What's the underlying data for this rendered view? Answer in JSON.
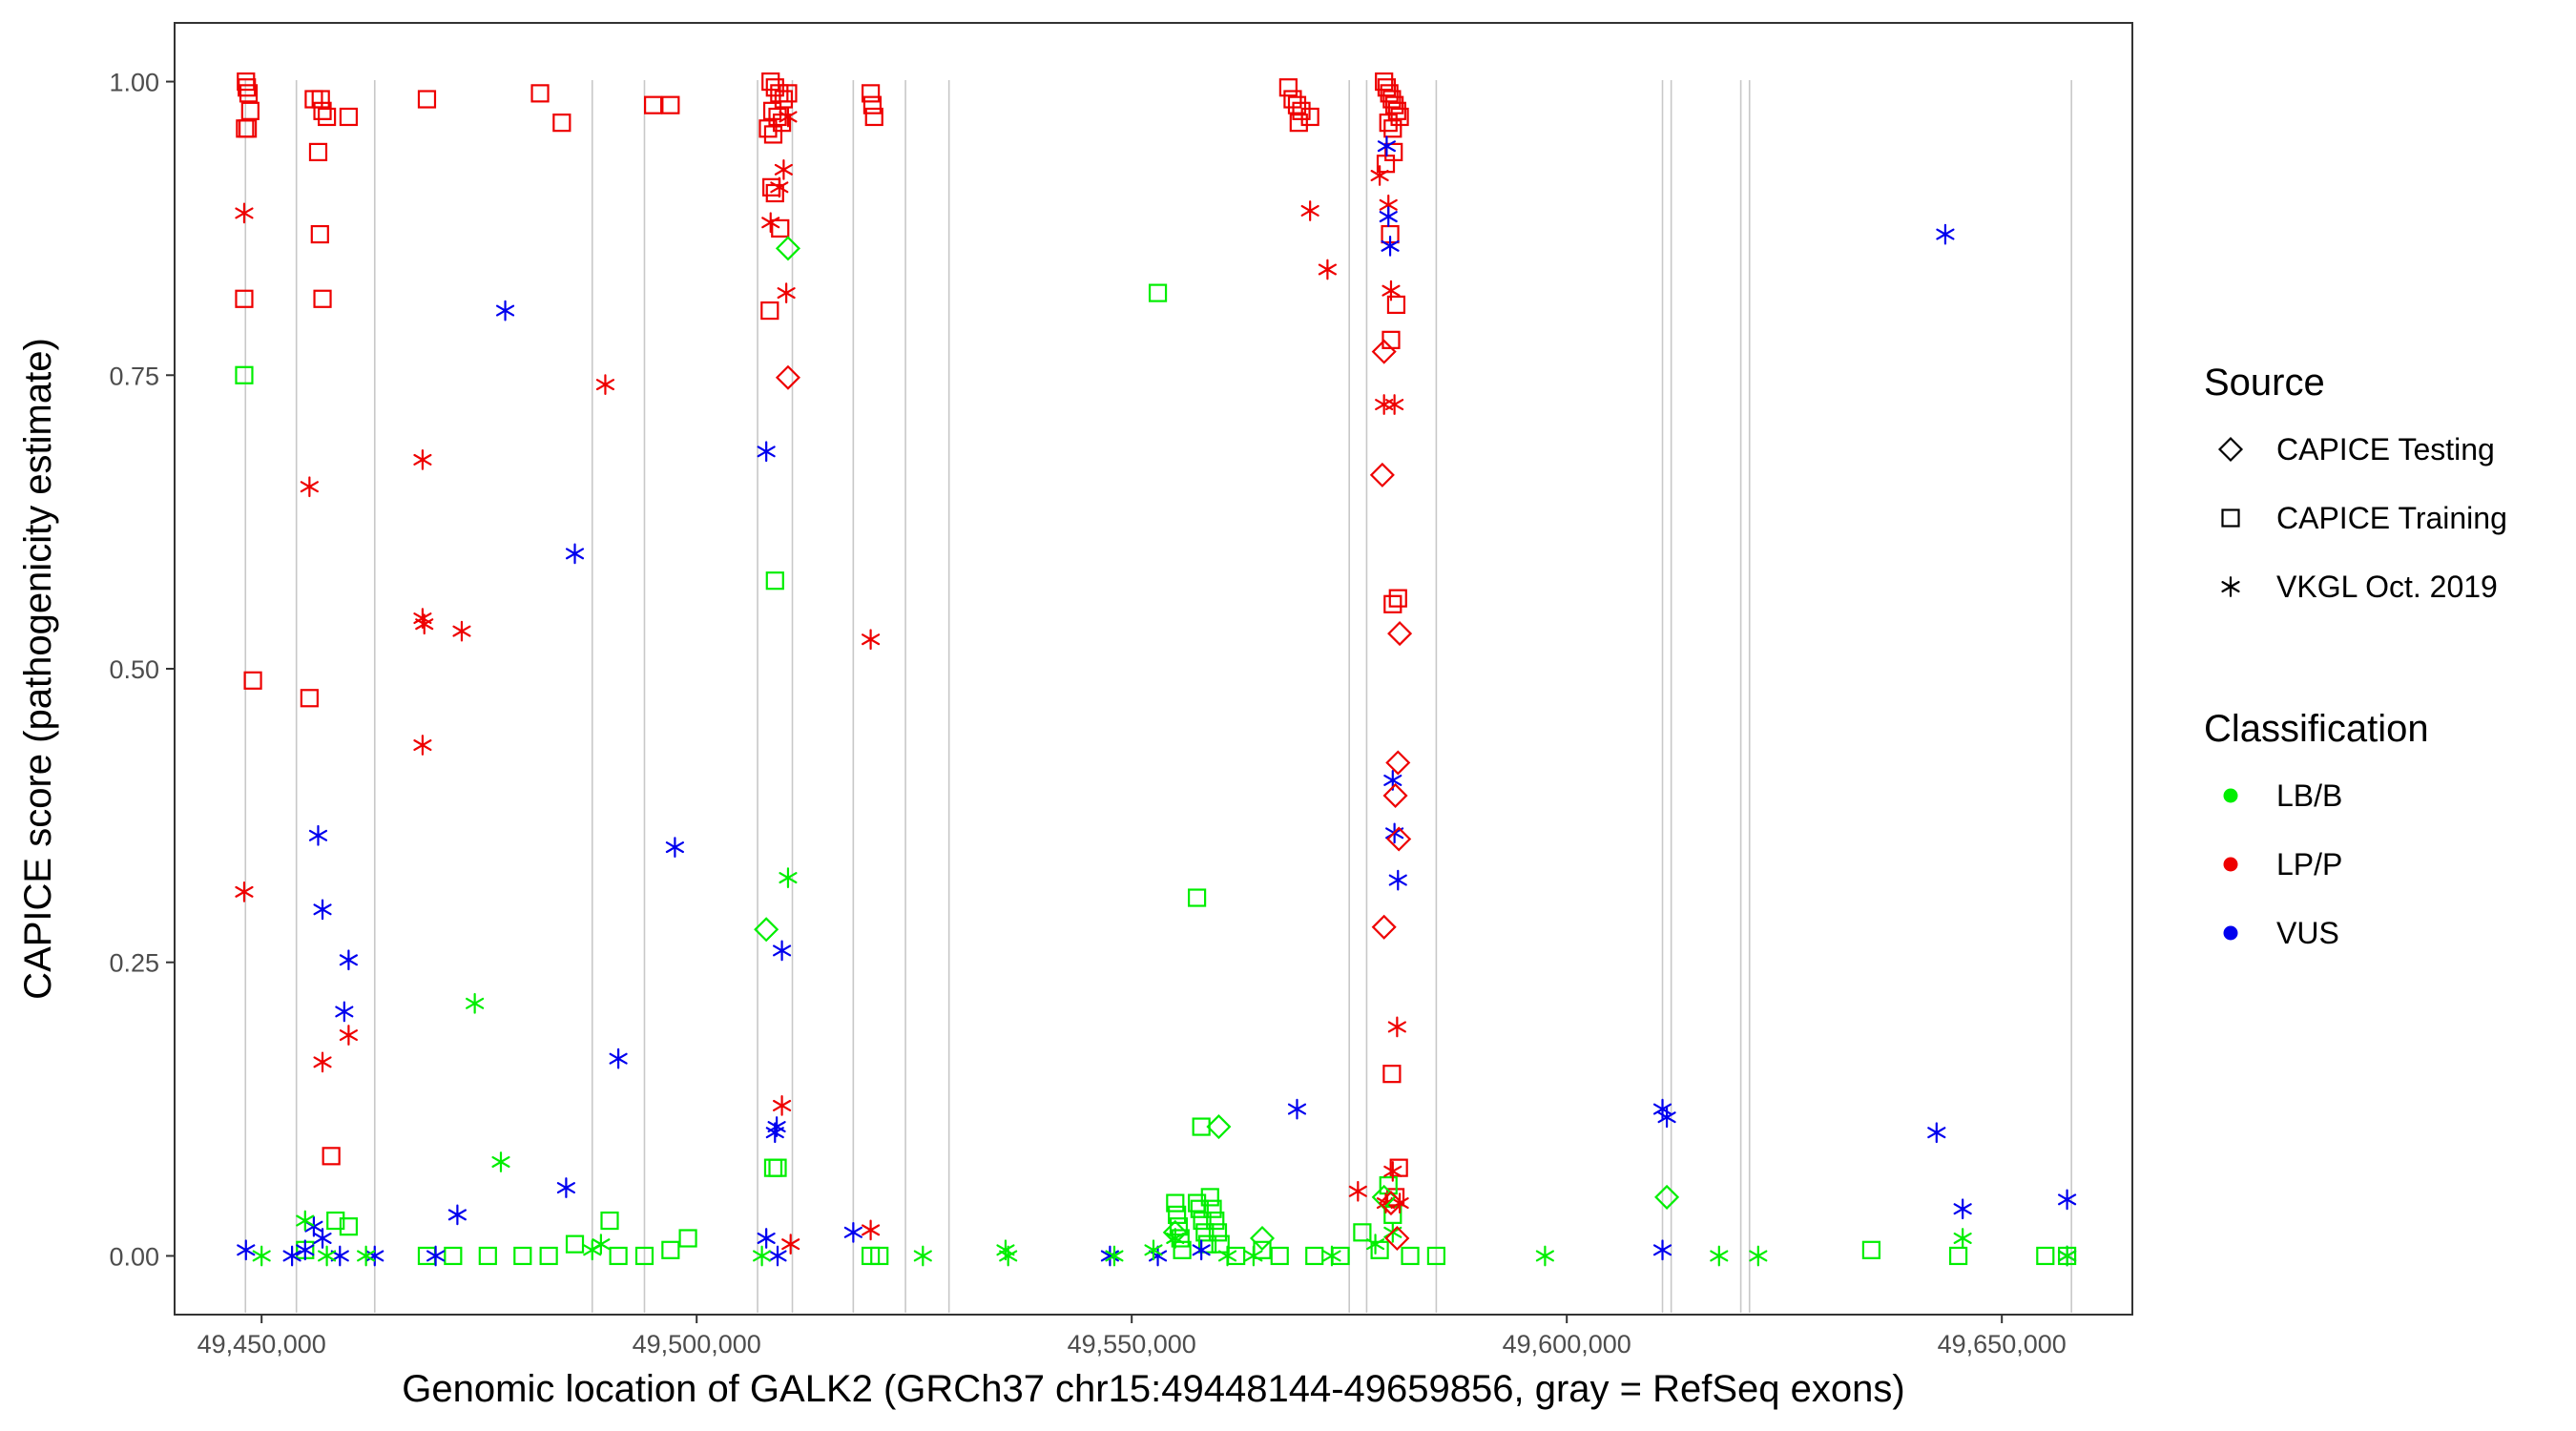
{
  "chart_data": {
    "type": "scatter",
    "xlabel": "Genomic location of GALK2 (GRCh37 chr15:49448144-49659856, gray = RefSeq exons)",
    "ylabel": "CAPICE score (pathogenicity estimate)",
    "xlim": [
      49440000,
      49665000
    ],
    "ylim": [
      -0.05,
      1.05
    ],
    "x_ticks": [
      49450000,
      49500000,
      49550000,
      49600000,
      49650000
    ],
    "x_tick_labels": [
      "49,450,000",
      "49,500,000",
      "49,550,000",
      "49,600,000",
      "49,650,000"
    ],
    "y_ticks": [
      0,
      0.25,
      0.5,
      0.75,
      1
    ],
    "y_tick_labels": [
      "0.00",
      "0.25",
      "0.50",
      "0.75",
      "1.00"
    ],
    "grid": false,
    "exons": [
      49448144,
      49454000,
      49463000,
      49488000,
      49494000,
      49507000,
      49511000,
      49518000,
      49524000,
      49529000,
      49575000,
      49577000,
      49585000,
      49611000,
      49612000,
      49620000,
      49621000,
      49658000
    ],
    "legend_placement": "right",
    "legend": {
      "source_title": "Source",
      "sources": [
        {
          "key": "testing",
          "label": "CAPICE Testing",
          "shape": "diamond"
        },
        {
          "key": "training",
          "label": "CAPICE Training",
          "shape": "square"
        },
        {
          "key": "vkgl",
          "label": "VKGL Oct. 2019",
          "shape": "asterisk"
        }
      ],
      "class_title": "Classification",
      "classes": [
        {
          "key": "LB/B",
          "label": "LB/B",
          "color": "#00ee00"
        },
        {
          "key": "LP/P",
          "label": "LP/P",
          "color": "#ee0000"
        },
        {
          "key": "VUS",
          "label": "VUS",
          "color": "#0000ee"
        }
      ]
    },
    "series": [
      {
        "source": "training",
        "class": "LP/P",
        "points": [
          [
            49448200,
            1.0
          ],
          [
            49448300,
            0.995
          ],
          [
            49448500,
            0.99
          ],
          [
            49448100,
            0.96
          ],
          [
            49448400,
            0.96
          ],
          [
            49448700,
            0.975
          ],
          [
            49448000,
            0.815
          ],
          [
            49449000,
            0.49
          ],
          [
            49456000,
            0.985
          ],
          [
            49456800,
            0.985
          ],
          [
            49457000,
            0.975
          ],
          [
            49457500,
            0.97
          ],
          [
            49460000,
            0.97
          ],
          [
            49456500,
            0.94
          ],
          [
            49456700,
            0.87
          ],
          [
            49457000,
            0.815
          ],
          [
            49455500,
            0.475
          ],
          [
            49458000,
            0.085
          ],
          [
            49469000,
            0.985
          ],
          [
            49482000,
            0.99
          ],
          [
            49484500,
            0.965
          ],
          [
            49495000,
            0.98
          ],
          [
            49497000,
            0.98
          ],
          [
            49508500,
            1.0
          ],
          [
            49509000,
            0.995
          ],
          [
            49509500,
            0.99
          ],
          [
            49510000,
            0.985
          ],
          [
            49508700,
            0.975
          ],
          [
            49509300,
            0.97
          ],
          [
            49510500,
            0.99
          ],
          [
            49508200,
            0.96
          ],
          [
            49508800,
            0.955
          ],
          [
            49509800,
            0.965
          ],
          [
            49508600,
            0.91
          ],
          [
            49509000,
            0.905
          ],
          [
            49509600,
            0.875
          ],
          [
            49508400,
            0.805
          ],
          [
            49520000,
            0.99
          ],
          [
            49520200,
            0.98
          ],
          [
            49520400,
            0.97
          ],
          [
            49568000,
            0.995
          ],
          [
            49568500,
            0.985
          ],
          [
            49569000,
            0.98
          ],
          [
            49569500,
            0.975
          ],
          [
            49570500,
            0.97
          ],
          [
            49569200,
            0.965
          ],
          [
            49579000,
            1.0
          ],
          [
            49579300,
            0.995
          ],
          [
            49579600,
            0.99
          ],
          [
            49579900,
            0.985
          ],
          [
            49580200,
            0.98
          ],
          [
            49580500,
            0.975
          ],
          [
            49580800,
            0.97
          ],
          [
            49579500,
            0.965
          ],
          [
            49580000,
            0.96
          ],
          [
            49579200,
            0.93
          ],
          [
            49580100,
            0.94
          ],
          [
            49579700,
            0.87
          ],
          [
            49580400,
            0.81
          ],
          [
            49579800,
            0.78
          ],
          [
            49580000,
            0.555
          ],
          [
            49580600,
            0.56
          ],
          [
            49579900,
            0.155
          ],
          [
            49580700,
            0.075
          ],
          [
            49580300,
            0.05
          ]
        ]
      },
      {
        "source": "training",
        "class": "LB/B",
        "points": [
          [
            49448000,
            0.75
          ],
          [
            49509000,
            0.575
          ],
          [
            49509300,
            0.075
          ],
          [
            49508800,
            0.075
          ],
          [
            49553000,
            0.82
          ],
          [
            49557500,
            0.305
          ],
          [
            49558000,
            0.11
          ],
          [
            49458500,
            0.03
          ],
          [
            49460000,
            0.025
          ],
          [
            49490000,
            0.03
          ],
          [
            49499000,
            0.015
          ],
          [
            49497000,
            0.005
          ],
          [
            49486000,
            0.01
          ],
          [
            49455000,
            0.005
          ],
          [
            49469000,
            0.0
          ],
          [
            49472000,
            0.0
          ],
          [
            49476000,
            0.0
          ],
          [
            49480000,
            0.0
          ],
          [
            49483000,
            0.0
          ],
          [
            49491000,
            0.0
          ],
          [
            49494000,
            0.0
          ],
          [
            49520000,
            0.0
          ],
          [
            49521000,
            0.0
          ],
          [
            49555000,
            0.045
          ],
          [
            49555200,
            0.035
          ],
          [
            49555400,
            0.025
          ],
          [
            49555600,
            0.015
          ],
          [
            49555800,
            0.005
          ],
          [
            49557500,
            0.045
          ],
          [
            49557800,
            0.04
          ],
          [
            49558100,
            0.03
          ],
          [
            49558400,
            0.02
          ],
          [
            49558700,
            0.01
          ],
          [
            49559000,
            0.05
          ],
          [
            49559300,
            0.04
          ],
          [
            49559600,
            0.03
          ],
          [
            49559900,
            0.02
          ],
          [
            49560200,
            0.01
          ],
          [
            49562000,
            0.0
          ],
          [
            49565000,
            0.005
          ],
          [
            49567000,
            0.0
          ],
          [
            49571000,
            0.0
          ],
          [
            49574000,
            0.0
          ],
          [
            49576500,
            0.02
          ],
          [
            49578500,
            0.005
          ],
          [
            49579500,
            0.06
          ],
          [
            49580000,
            0.035
          ],
          [
            49582000,
            0.0
          ],
          [
            49585000,
            0.0
          ],
          [
            49635000,
            0.005
          ],
          [
            49645000,
            0.0
          ],
          [
            49655000,
            0.0
          ],
          [
            49657500,
            0.0
          ]
        ]
      },
      {
        "source": "vkgl",
        "class": "LP/P",
        "points": [
          [
            49448000,
            0.888
          ],
          [
            49448000,
            0.31
          ],
          [
            49455500,
            0.655
          ],
          [
            49457000,
            0.165
          ],
          [
            49460000,
            0.188
          ],
          [
            49468500,
            0.678
          ],
          [
            49468500,
            0.543
          ],
          [
            49468700,
            0.538
          ],
          [
            49473000,
            0.532
          ],
          [
            49468500,
            0.435
          ],
          [
            49489500,
            0.742
          ],
          [
            49508500,
            0.88
          ],
          [
            49509500,
            0.91
          ],
          [
            49510000,
            0.925
          ],
          [
            49510500,
            0.97
          ],
          [
            49510300,
            0.82
          ],
          [
            49509800,
            0.128
          ],
          [
            49510800,
            0.01
          ],
          [
            49520000,
            0.525
          ],
          [
            49520000,
            0.022
          ],
          [
            49570500,
            0.89
          ],
          [
            49572500,
            0.84
          ],
          [
            49578500,
            0.92
          ],
          [
            49579500,
            0.895
          ],
          [
            49579800,
            0.822
          ],
          [
            49579000,
            0.725
          ],
          [
            49580200,
            0.725
          ],
          [
            49580500,
            0.195
          ],
          [
            49580000,
            0.072
          ],
          [
            49580800,
            0.045
          ],
          [
            49576000,
            0.055
          ],
          [
            49579200,
            0.045
          ]
        ]
      },
      {
        "source": "vkgl",
        "class": "VUS",
        "points": [
          [
            49448200,
            0.005
          ],
          [
            49456500,
            0.358
          ],
          [
            49457000,
            0.295
          ],
          [
            49460000,
            0.252
          ],
          [
            49459500,
            0.208
          ],
          [
            49456000,
            0.025
          ],
          [
            49457000,
            0.015
          ],
          [
            49455000,
            0.005
          ],
          [
            49453500,
            0.0
          ],
          [
            49459000,
            0.0
          ],
          [
            49463000,
            0.0
          ],
          [
            49478000,
            0.805
          ],
          [
            49486000,
            0.598
          ],
          [
            49497500,
            0.348
          ],
          [
            49491000,
            0.168
          ],
          [
            49485000,
            0.058
          ],
          [
            49472500,
            0.035
          ],
          [
            49470000,
            0.0
          ],
          [
            49508000,
            0.685
          ],
          [
            49509800,
            0.26
          ],
          [
            49509200,
            0.11
          ],
          [
            49509000,
            0.105
          ],
          [
            49508000,
            0.015
          ],
          [
            49509300,
            0.0
          ],
          [
            49518000,
            0.02
          ],
          [
            49547500,
            0.0
          ],
          [
            49553000,
            0.0
          ],
          [
            49558000,
            0.005
          ],
          [
            49569000,
            0.125
          ],
          [
            49579300,
            0.945
          ],
          [
            49579500,
            0.885
          ],
          [
            49579700,
            0.86
          ],
          [
            49580000,
            0.405
          ],
          [
            49580200,
            0.36
          ],
          [
            49580600,
            0.32
          ],
          [
            49611000,
            0.125
          ],
          [
            49611500,
            0.118
          ],
          [
            49611000,
            0.005
          ],
          [
            49643500,
            0.87
          ],
          [
            49642500,
            0.105
          ],
          [
            49645500,
            0.04
          ],
          [
            49657500,
            0.048
          ],
          [
            49657500,
            0.0
          ]
        ]
      },
      {
        "source": "vkgl",
        "class": "LB/B",
        "points": [
          [
            49450000,
            0.0
          ],
          [
            49455000,
            0.03
          ],
          [
            49457500,
            0.0
          ],
          [
            49462000,
            0.0
          ],
          [
            49474500,
            0.215
          ],
          [
            49477500,
            0.08
          ],
          [
            49489000,
            0.01
          ],
          [
            49488000,
            0.005
          ],
          [
            49510500,
            0.322
          ],
          [
            49507500,
            0.0
          ],
          [
            49526000,
            0.0
          ],
          [
            49535500,
            0.005
          ],
          [
            49535800,
            0.0
          ],
          [
            49548000,
            0.0
          ],
          [
            49552500,
            0.005
          ],
          [
            49555000,
            0.015
          ],
          [
            49561000,
            0.0
          ],
          [
            49564000,
            0.0
          ],
          [
            49573000,
            0.0
          ],
          [
            49578000,
            0.01
          ],
          [
            49580000,
            0.02
          ],
          [
            49597500,
            0.0
          ],
          [
            49617500,
            0.0
          ],
          [
            49622000,
            0.0
          ],
          [
            49645500,
            0.015
          ],
          [
            49657500,
            0.0
          ]
        ]
      },
      {
        "source": "testing",
        "class": "LB/B",
        "points": [
          [
            49510500,
            0.858
          ],
          [
            49508000,
            0.278
          ],
          [
            49560000,
            0.11
          ],
          [
            49565000,
            0.015
          ],
          [
            49611500,
            0.05
          ],
          [
            49555000,
            0.02
          ],
          [
            49579000,
            0.05
          ]
        ]
      },
      {
        "source": "testing",
        "class": "LP/P",
        "points": [
          [
            49510500,
            0.748
          ],
          [
            49579000,
            0.77
          ],
          [
            49578800,
            0.665
          ],
          [
            49580800,
            0.53
          ],
          [
            49580600,
            0.42
          ],
          [
            49580300,
            0.392
          ],
          [
            49580700,
            0.355
          ],
          [
            49579000,
            0.28
          ],
          [
            49580500,
            0.015
          ],
          [
            49579800,
            0.045
          ]
        ]
      }
    ]
  }
}
